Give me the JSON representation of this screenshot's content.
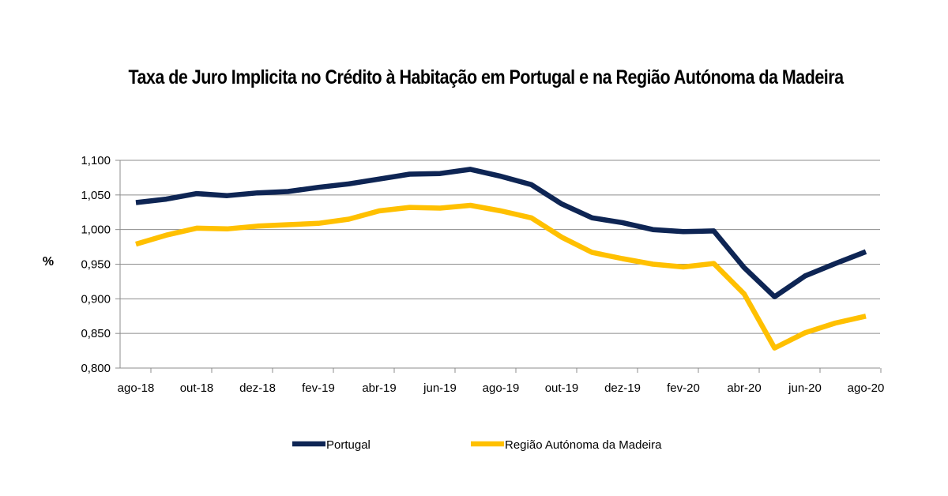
{
  "chart_data": {
    "type": "line",
    "title": "Taxa de Juro Implicita no Crédito à Habitação em Portugal e na Região Autónoma da Madeira",
    "ylabel": "%",
    "ylim": [
      0.8,
      1.1
    ],
    "yticks": [
      "1,100",
      "1,050",
      "1,000",
      "0,950",
      "0,900",
      "0,850",
      "0,800"
    ],
    "ytick_values": [
      1.1,
      1.05,
      1.0,
      0.95,
      0.9,
      0.85,
      0.8
    ],
    "x": [
      "ago-18",
      "set-18",
      "out-18",
      "nov-18",
      "dez-18",
      "jan-19",
      "fev-19",
      "mar-19",
      "abr-19",
      "mai-19",
      "jun-19",
      "jul-19",
      "ago-19",
      "set-19",
      "out-19",
      "nov-19",
      "dez-19",
      "jan-20",
      "fev-20",
      "mar-20",
      "abr-20",
      "mai-20",
      "jun-20",
      "jul-20",
      "ago-20"
    ],
    "xtick_labels": [
      "ago-18",
      "out-18",
      "dez-18",
      "fev-19",
      "abr-19",
      "jun-19",
      "ago-19",
      "out-19",
      "dez-19",
      "fev-20",
      "abr-20",
      "jun-20",
      "ago-20"
    ],
    "grid": "horizontal",
    "legend_position": "bottom",
    "series": [
      {
        "name": "Portugal",
        "color": "#0e2554",
        "values": [
          1.039,
          1.044,
          1.052,
          1.049,
          1.053,
          1.055,
          1.061,
          1.066,
          1.073,
          1.08,
          1.081,
          1.087,
          1.077,
          1.065,
          1.037,
          1.017,
          1.01,
          1.0,
          0.997,
          0.998,
          0.945,
          0.903,
          0.933,
          0.951,
          0.968
        ]
      },
      {
        "name": "Região Autónoma da Madeira",
        "color": "#ffc000",
        "values": [
          0.979,
          0.992,
          1.002,
          1.001,
          1.005,
          1.007,
          1.009,
          1.015,
          1.027,
          1.032,
          1.031,
          1.035,
          1.027,
          1.017,
          0.989,
          0.967,
          0.958,
          0.95,
          0.946,
          0.951,
          0.907,
          0.829,
          0.851,
          0.865,
          0.875
        ]
      }
    ]
  }
}
